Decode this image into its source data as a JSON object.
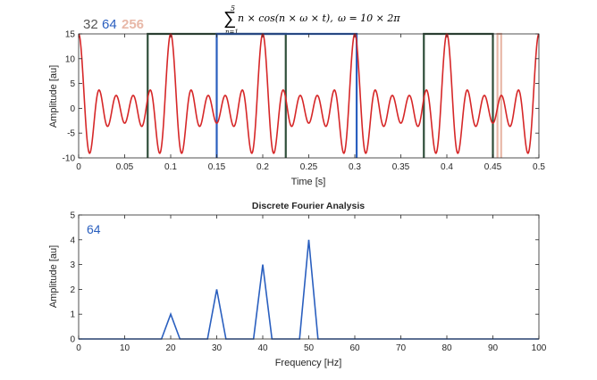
{
  "formula": {
    "sum_upper": "5",
    "sum_symbol": "∑",
    "sum_lower": "n=1",
    "body": "n × cos(n × ω × t),",
    "omega": "ω = 10 × 2π"
  },
  "chart_data": [
    {
      "type": "line",
      "title": "",
      "xlabel": "Time [s]",
      "ylabel": "Amplitude [au]",
      "xlim": [
        0,
        0.5
      ],
      "ylim": [
        -10,
        15
      ],
      "x_ticks": [
        "0",
        "0.05",
        "0.1",
        "0.15",
        "0.2",
        "0.25",
        "0.3",
        "0.35",
        "0.4",
        "0.45",
        "0.5"
      ],
      "y_ticks": [
        "-10",
        "-5",
        "0",
        "5",
        "10",
        "15"
      ],
      "x_tick_values": [
        0,
        0.05,
        0.1,
        0.15,
        0.2,
        0.25,
        0.3,
        0.35,
        0.4,
        0.45,
        0.5
      ],
      "y_tick_values": [
        -10,
        -5,
        0,
        5,
        10,
        15
      ],
      "signal": {
        "formula": "sum_{n=1..5} n*cos(n*2*pi*10*t)",
        "base_frequency_hz": 10,
        "harmonics": 5,
        "color": "#d62728"
      },
      "sampling_legend": [
        {
          "label": "32",
          "color": "#555555"
        },
        {
          "label": "64",
          "color": "#2a5fbf"
        },
        {
          "label": "256",
          "color": "#e8b8a8"
        }
      ],
      "sample_windows": [
        {
          "name": "32",
          "color": "#2f4f3a",
          "t_start": 0.075,
          "t_end": 0.225,
          "level_top": 15,
          "level_bottom": -10
        },
        {
          "name": "32",
          "color": "#2f4f3a",
          "t_start": 0.375,
          "t_end": 0.45,
          "level_top": 15,
          "level_bottom": -10
        },
        {
          "name": "64",
          "color": "#2a5fbf",
          "t_start": 0.15,
          "t_end": 0.302,
          "level_top": 15,
          "level_bottom": -10
        },
        {
          "name": "256",
          "color": "#e8b8a8",
          "t_start": 0.455,
          "t_end": 0.459,
          "level_top": 15,
          "level_bottom": -10
        }
      ],
      "grid": false
    },
    {
      "type": "line",
      "title": "Discrete Fourier Analysis",
      "annotation": "64",
      "annotation_color": "#2a5fbf",
      "xlabel": "Frequency [Hz]",
      "ylabel": "Amplitude [au]",
      "xlim": [
        0,
        100
      ],
      "ylim": [
        0,
        5
      ],
      "x_ticks": [
        "0",
        "10",
        "20",
        "30",
        "40",
        "50",
        "60",
        "70",
        "80",
        "90",
        "100"
      ],
      "y_ticks": [
        "0",
        "1",
        "2",
        "3",
        "4",
        "5"
      ],
      "x_tick_values": [
        0,
        10,
        20,
        30,
        40,
        50,
        60,
        70,
        80,
        90,
        100
      ],
      "y_tick_values": [
        0,
        1,
        2,
        3,
        4,
        5
      ],
      "series": [
        {
          "color": "#2a5fbf",
          "x": [
            0,
            18,
            20,
            22,
            28,
            30,
            32,
            38,
            40,
            42,
            48,
            50,
            52,
            100
          ],
          "y": [
            0,
            0,
            1,
            0,
            0,
            2,
            0,
            0,
            3,
            0,
            0,
            4,
            0,
            0
          ]
        }
      ],
      "grid": false
    }
  ]
}
